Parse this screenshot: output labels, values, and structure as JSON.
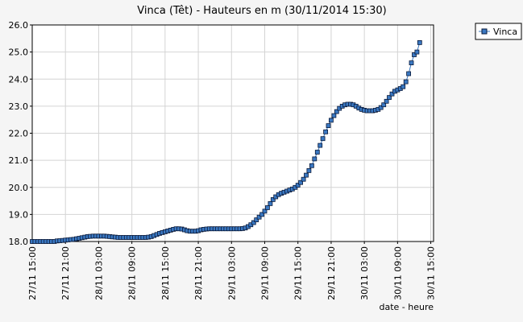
{
  "chart_data": {
    "type": "line",
    "title": "Vinca (Têt) - Hauteurs en m (30/11/2014 15:30)",
    "xlabel": "date - heure",
    "ylabel": "",
    "xlim": [
      0,
      72.5
    ],
    "ylim": [
      18.0,
      26.0
    ],
    "grid": true,
    "legend_position": "top-right",
    "x_tick_labels": [
      "27/11 15:00",
      "27/11 21:00",
      "28/11 03:00",
      "28/11 09:00",
      "28/11 15:00",
      "28/11 21:00",
      "29/11 03:00",
      "29/11 09:00",
      "29/11 15:00",
      "29/11 21:00",
      "30/11 03:00",
      "30/11 09:00",
      "30/11 15:00"
    ],
    "y_ticks": [
      "18.0",
      "19.0",
      "20.0",
      "21.0",
      "22.0",
      "23.0",
      "24.0",
      "25.0",
      "26.0"
    ],
    "series": [
      {
        "name": "Vinca",
        "color": "#3a78c2",
        "points": [
          [
            0,
            18.0
          ],
          [
            0.5,
            18.0
          ],
          [
            1,
            18.0
          ],
          [
            1.5,
            18.0
          ],
          [
            2,
            18.0
          ],
          [
            2.5,
            18.0
          ],
          [
            3,
            18.0
          ],
          [
            3.5,
            18.0
          ],
          [
            4,
            18.0
          ],
          [
            4.5,
            18.02
          ],
          [
            5,
            18.03
          ],
          [
            5.5,
            18.04
          ],
          [
            6,
            18.05
          ],
          [
            6.5,
            18.06
          ],
          [
            7,
            18.07
          ],
          [
            7.5,
            18.08
          ],
          [
            8,
            18.1
          ],
          [
            8.5,
            18.12
          ],
          [
            9,
            18.14
          ],
          [
            9.5,
            18.16
          ],
          [
            10,
            18.18
          ],
          [
            10.5,
            18.19
          ],
          [
            11,
            18.2
          ],
          [
            11.5,
            18.2
          ],
          [
            12,
            18.2
          ],
          [
            12.5,
            18.2
          ],
          [
            13,
            18.2
          ],
          [
            13.5,
            18.19
          ],
          [
            14,
            18.18
          ],
          [
            14.5,
            18.17
          ],
          [
            15,
            18.16
          ],
          [
            15.5,
            18.15
          ],
          [
            16,
            18.15
          ],
          [
            16.5,
            18.15
          ],
          [
            17,
            18.15
          ],
          [
            17.5,
            18.15
          ],
          [
            18,
            18.15
          ],
          [
            18.5,
            18.15
          ],
          [
            19,
            18.15
          ],
          [
            19.5,
            18.15
          ],
          [
            20,
            18.15
          ],
          [
            20.5,
            18.15
          ],
          [
            21,
            18.16
          ],
          [
            21.5,
            18.18
          ],
          [
            22,
            18.22
          ],
          [
            22.5,
            18.26
          ],
          [
            23,
            18.3
          ],
          [
            23.5,
            18.33
          ],
          [
            24,
            18.36
          ],
          [
            24.5,
            18.39
          ],
          [
            25,
            18.42
          ],
          [
            25.5,
            18.45
          ],
          [
            26,
            18.47
          ],
          [
            26.5,
            18.47
          ],
          [
            27,
            18.46
          ],
          [
            27.5,
            18.43
          ],
          [
            28,
            18.4
          ],
          [
            28.5,
            18.38
          ],
          [
            29,
            18.38
          ],
          [
            29.5,
            18.38
          ],
          [
            30,
            18.4
          ],
          [
            30.5,
            18.43
          ],
          [
            31,
            18.45
          ],
          [
            31.5,
            18.46
          ],
          [
            32,
            18.47
          ],
          [
            32.5,
            18.47
          ],
          [
            33,
            18.47
          ],
          [
            33.5,
            18.47
          ],
          [
            34,
            18.47
          ],
          [
            34.5,
            18.47
          ],
          [
            35,
            18.47
          ],
          [
            35.5,
            18.47
          ],
          [
            36,
            18.47
          ],
          [
            36.5,
            18.47
          ],
          [
            37,
            18.47
          ],
          [
            37.5,
            18.47
          ],
          [
            38,
            18.48
          ],
          [
            38.5,
            18.5
          ],
          [
            39,
            18.55
          ],
          [
            39.5,
            18.62
          ],
          [
            40,
            18.7
          ],
          [
            40.5,
            18.8
          ],
          [
            41,
            18.9
          ],
          [
            41.5,
            19.0
          ],
          [
            42,
            19.12
          ],
          [
            42.5,
            19.25
          ],
          [
            43,
            19.4
          ],
          [
            43.5,
            19.55
          ],
          [
            44,
            19.65
          ],
          [
            44.5,
            19.73
          ],
          [
            45,
            19.78
          ],
          [
            45.5,
            19.82
          ],
          [
            46,
            19.86
          ],
          [
            46.5,
            19.9
          ],
          [
            47,
            19.94
          ],
          [
            47.5,
            20.0
          ],
          [
            48,
            20.08
          ],
          [
            48.5,
            20.18
          ],
          [
            49,
            20.3
          ],
          [
            49.5,
            20.45
          ],
          [
            50,
            20.62
          ],
          [
            50.5,
            20.8
          ],
          [
            51,
            21.05
          ],
          [
            51.5,
            21.3
          ],
          [
            52,
            21.55
          ],
          [
            52.5,
            21.8
          ],
          [
            53,
            22.05
          ],
          [
            53.5,
            22.28
          ],
          [
            54,
            22.48
          ],
          [
            54.5,
            22.65
          ],
          [
            55,
            22.8
          ],
          [
            55.5,
            22.92
          ],
          [
            56,
            23.0
          ],
          [
            56.5,
            23.05
          ],
          [
            57,
            23.07
          ],
          [
            57.5,
            23.07
          ],
          [
            58,
            23.05
          ],
          [
            58.5,
            23.0
          ],
          [
            59,
            22.93
          ],
          [
            59.5,
            22.88
          ],
          [
            60,
            22.85
          ],
          [
            60.5,
            22.83
          ],
          [
            61,
            22.83
          ],
          [
            61.5,
            22.83
          ],
          [
            62,
            22.85
          ],
          [
            62.5,
            22.88
          ],
          [
            63,
            22.95
          ],
          [
            63.5,
            23.05
          ],
          [
            64,
            23.18
          ],
          [
            64.5,
            23.32
          ],
          [
            65,
            23.45
          ],
          [
            65.5,
            23.55
          ],
          [
            66,
            23.6
          ],
          [
            66.5,
            23.65
          ],
          [
            67,
            23.72
          ],
          [
            67.5,
            23.9
          ],
          [
            68,
            24.2
          ],
          [
            68.5,
            24.6
          ],
          [
            69,
            24.9
          ],
          [
            69.5,
            25.0
          ],
          [
            70,
            25.35
          ]
        ]
      }
    ]
  }
}
